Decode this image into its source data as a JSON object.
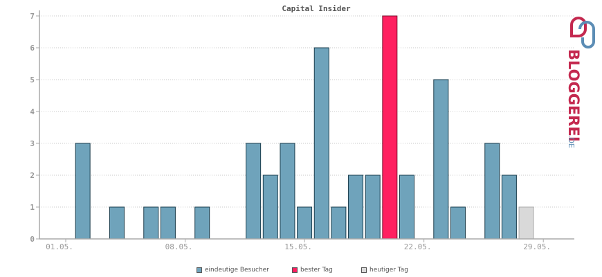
{
  "chart_data": {
    "type": "bar",
    "title": "Capital Insider",
    "xlabel": "",
    "ylabel": "",
    "ylim": [
      0,
      7
    ],
    "yticks": [
      0,
      1,
      2,
      3,
      4,
      5,
      6,
      7
    ],
    "grid": true,
    "legend_position": "bottom",
    "days": [
      1,
      2,
      3,
      4,
      5,
      6,
      7,
      8,
      9,
      10,
      11,
      12,
      13,
      14,
      15,
      16,
      17,
      18,
      19,
      20,
      21,
      22,
      23,
      24,
      25,
      26,
      27,
      28,
      29,
      30
    ],
    "x_tick_labels": [
      {
        "day": 1,
        "label": "01.05."
      },
      {
        "day": 8,
        "label": "08.05."
      },
      {
        "day": 15,
        "label": "15.05."
      },
      {
        "day": 22,
        "label": "22.05."
      },
      {
        "day": 29,
        "label": "29.05."
      }
    ],
    "values": [
      0,
      3,
      0,
      1,
      0,
      1,
      1,
      0,
      1,
      0,
      0,
      3,
      2,
      3,
      1,
      6,
      1,
      2,
      2,
      7,
      2,
      0,
      5,
      1,
      0,
      3,
      2,
      1,
      0,
      0
    ],
    "best_day": 20,
    "today": 28,
    "series": [
      {
        "name": "eindeutige Besucher",
        "color": "#6fa3bb"
      },
      {
        "name": "bester Tag",
        "color": "#ff2060"
      },
      {
        "name": "heutiger Tag",
        "color": "#d9d9d9"
      }
    ]
  },
  "logo": {
    "text_main": "BLOGGEREI",
    "text_suffix": ".DE",
    "color_main": "#c4294f",
    "color_suffix": "#5c8db5"
  }
}
